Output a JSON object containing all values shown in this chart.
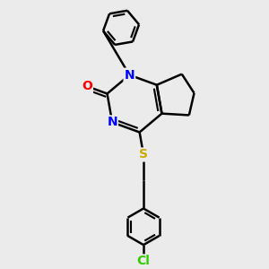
{
  "background_color": "#ebebeb",
  "bond_color": "#000000",
  "bond_width": 1.8,
  "atom_colors": {
    "N": "#0000ff",
    "O": "#ff0000",
    "S": "#ccaa00",
    "Cl": "#33cc00",
    "C": "#000000"
  },
  "font_size_atom": 10,
  "figsize": [
    3.0,
    3.0
  ],
  "dpi": 100
}
